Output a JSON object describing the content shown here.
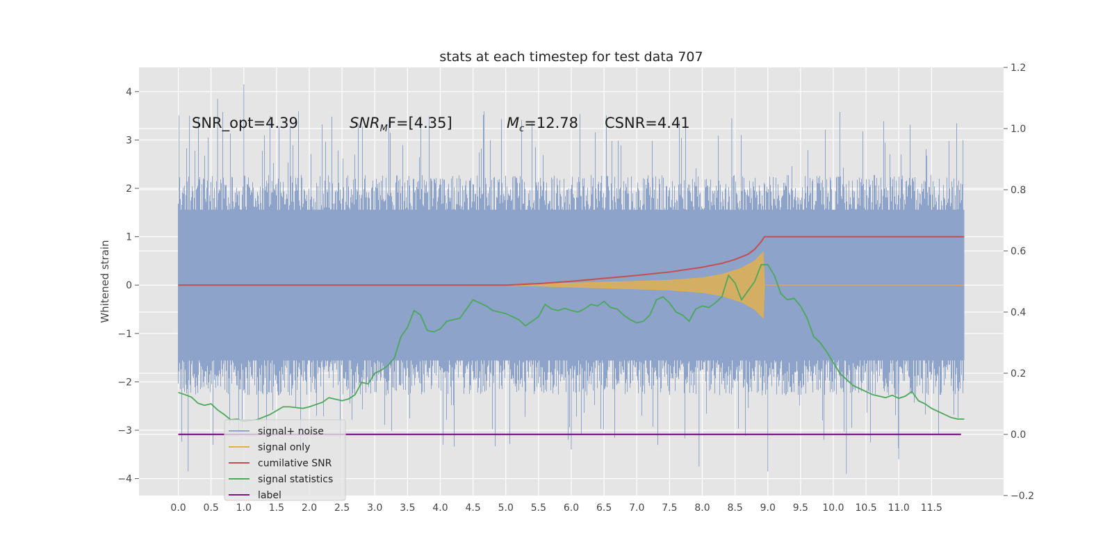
{
  "chart_data": {
    "type": "line",
    "title": "stats at each timestep for test data 707",
    "ylabel": "Whitened strain",
    "xlabel": "",
    "xlim": [
      -0.6,
      12.6
    ],
    "ylim": [
      -4.35,
      4.5
    ],
    "y2lim": [
      -0.2,
      1.2
    ],
    "grid": true,
    "legend_position": "lower-left",
    "x_ticks": [
      "0.0",
      "0.5",
      "1.0",
      "1.5",
      "2.0",
      "2.5",
      "3.0",
      "3.5",
      "4.0",
      "4.5",
      "5.0",
      "5.5",
      "6.0",
      "6.5",
      "7.0",
      "7.5",
      "8.0",
      "8.5",
      "9.0",
      "9.5",
      "10.0",
      "10.5",
      "11.0",
      "11.5"
    ],
    "y_ticks": [
      -4,
      -3,
      -2,
      -1,
      0,
      1,
      2,
      3,
      4
    ],
    "y_tick_labels": [
      "−4",
      "−3",
      "−2",
      "−1",
      "0",
      "1",
      "2",
      "3",
      "4"
    ],
    "y2_ticks": [
      -0.2,
      0.0,
      0.2,
      0.4,
      0.6,
      0.8,
      1.0,
      1.2
    ],
    "y2_tick_labels": [
      "−0.2",
      "0.0",
      "0.2",
      "0.4",
      "0.6",
      "0.8",
      "1.0",
      "1.2"
    ],
    "annotations": {
      "snr_opt": "SNR_opt=4.39",
      "snr_mf_pre": "SNR",
      "snr_mf_sub": "M",
      "snr_mf_post": "F=[4.35]",
      "mc_pre": "M",
      "mc_sub": "c",
      "mc_post": "=12.78",
      "csnr": "CSNR=4.41"
    },
    "series": [
      {
        "name": "signal+ noise",
        "color": "#8da3c9",
        "axis": "left",
        "description_range": [
          0.0,
          12.0
        ],
        "envelope": {
          "typical_low": -1.9,
          "typical_high": 1.9,
          "max": 4.15,
          "min": -3.85
        }
      },
      {
        "name": "signal only",
        "color": "#e0b050",
        "axis": "left",
        "x": [
          0.0,
          5.0,
          5.5,
          6.0,
          6.5,
          7.0,
          7.5,
          8.0,
          8.3,
          8.6,
          8.8,
          8.93,
          8.95,
          12.0
        ],
        "amplitude": [
          0.0,
          0.005,
          0.02,
          0.04,
          0.06,
          0.08,
          0.1,
          0.15,
          0.22,
          0.35,
          0.5,
          0.68,
          0.0,
          0.0
        ]
      },
      {
        "name": "cumilative SNR",
        "color": "#c44e52",
        "axis": "left",
        "x": [
          0.0,
          5.0,
          5.5,
          6.0,
          6.5,
          7.0,
          7.5,
          8.0,
          8.3,
          8.5,
          8.7,
          8.8,
          8.9,
          8.95,
          12.0
        ],
        "y": [
          0.0,
          0.0,
          0.03,
          0.08,
          0.14,
          0.2,
          0.27,
          0.37,
          0.45,
          0.53,
          0.64,
          0.74,
          0.9,
          1.0,
          1.0
        ]
      },
      {
        "name": "signal statistics",
        "color": "#4aa85a",
        "axis": "right",
        "x": [
          0.0,
          0.1,
          0.2,
          0.3,
          0.4,
          0.5,
          0.6,
          0.7,
          0.8,
          0.9,
          1.0,
          1.2,
          1.4,
          1.6,
          1.7,
          1.9,
          2.0,
          2.2,
          2.3,
          2.5,
          2.6,
          2.7,
          2.8,
          2.9,
          3.0,
          3.1,
          3.2,
          3.3,
          3.4,
          3.5,
          3.6,
          3.7,
          3.8,
          3.9,
          4.0,
          4.1,
          4.2,
          4.3,
          4.4,
          4.5,
          4.6,
          4.7,
          4.8,
          4.9,
          5.0,
          5.1,
          5.2,
          5.3,
          5.4,
          5.5,
          5.6,
          5.7,
          5.8,
          5.9,
          6.0,
          6.1,
          6.2,
          6.3,
          6.4,
          6.5,
          6.6,
          6.7,
          6.8,
          6.9,
          7.0,
          7.1,
          7.2,
          7.3,
          7.4,
          7.5,
          7.6,
          7.7,
          7.8,
          7.9,
          8.0,
          8.1,
          8.2,
          8.3,
          8.4,
          8.5,
          8.6,
          8.7,
          8.8,
          8.9,
          9.0,
          9.1,
          9.2,
          9.3,
          9.4,
          9.5,
          9.6,
          9.7,
          9.8,
          9.9,
          10.0,
          10.1,
          10.2,
          10.3,
          10.4,
          10.5,
          10.6,
          10.7,
          10.8,
          10.9,
          11.0,
          11.1,
          11.2,
          11.3,
          11.4,
          11.5,
          11.6,
          11.7,
          11.8,
          11.9,
          12.0
        ],
        "y": [
          0.137,
          0.13,
          0.122,
          0.102,
          0.095,
          0.1,
          0.08,
          0.065,
          0.048,
          0.05,
          0.043,
          0.048,
          0.065,
          0.09,
          0.09,
          0.085,
          0.09,
          0.105,
          0.12,
          0.11,
          0.116,
          0.13,
          0.17,
          0.165,
          0.2,
          0.21,
          0.225,
          0.25,
          0.32,
          0.35,
          0.405,
          0.39,
          0.34,
          0.335,
          0.345,
          0.37,
          0.375,
          0.38,
          0.41,
          0.44,
          0.43,
          0.42,
          0.405,
          0.4,
          0.395,
          0.385,
          0.375,
          0.355,
          0.37,
          0.385,
          0.425,
          0.41,
          0.405,
          0.412,
          0.405,
          0.4,
          0.41,
          0.425,
          0.42,
          0.435,
          0.415,
          0.41,
          0.39,
          0.375,
          0.365,
          0.37,
          0.39,
          0.44,
          0.45,
          0.43,
          0.4,
          0.39,
          0.37,
          0.41,
          0.42,
          0.415,
          0.43,
          0.45,
          0.52,
          0.495,
          0.44,
          0.47,
          0.5,
          0.555,
          0.555,
          0.52,
          0.46,
          0.44,
          0.445,
          0.42,
          0.38,
          0.32,
          0.3,
          0.27,
          0.235,
          0.2,
          0.18,
          0.16,
          0.15,
          0.14,
          0.13,
          0.125,
          0.12,
          0.128,
          0.118,
          0.125,
          0.14,
          0.11,
          0.1,
          0.085,
          0.075,
          0.065,
          0.055,
          0.05,
          0.05
        ]
      },
      {
        "name": "label",
        "color": "#7b1a7e",
        "axis": "right",
        "x": [
          0.0,
          11.95
        ],
        "y": [
          0.0,
          0.0
        ]
      }
    ],
    "legend": [
      "signal+ noise",
      "signal only",
      "cumilative SNR",
      "signal statistics",
      "label"
    ]
  }
}
